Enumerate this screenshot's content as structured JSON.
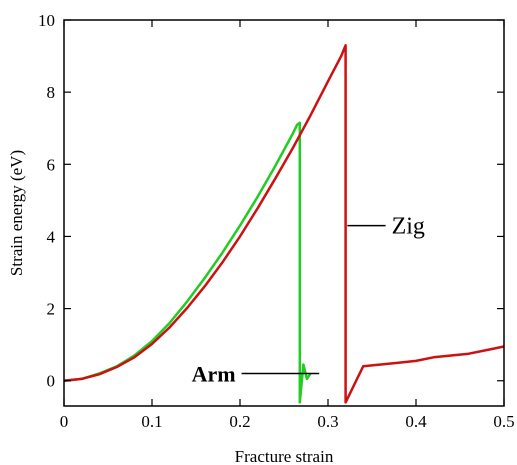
{
  "chart_data": {
    "type": "line",
    "title": "",
    "xlabel": "Fracture strain",
    "ylabel": "Strain energy (eV)",
    "xlim": [
      0,
      0.5
    ],
    "ylim": [
      -0.7,
      10
    ],
    "x_ticks": [
      "0",
      "0.1",
      "0.2",
      "0.3",
      "0.4",
      "0.5"
    ],
    "y_ticks": [
      "0",
      "2",
      "4",
      "6",
      "8",
      "10"
    ],
    "x_tick_values": [
      0,
      0.1,
      0.2,
      0.3,
      0.4,
      0.5
    ],
    "y_tick_values": [
      0,
      2,
      4,
      6,
      8,
      10
    ],
    "grid": false,
    "legend": "none",
    "series": [
      {
        "name": "Arm",
        "color": "#22cc22",
        "x": [
          0,
          0.02,
          0.04,
          0.06,
          0.08,
          0.1,
          0.12,
          0.14,
          0.16,
          0.18,
          0.2,
          0.22,
          0.24,
          0.26,
          0.265,
          0.268,
          0.268,
          0.272,
          0.276,
          0.28
        ],
        "y": [
          0,
          0.05,
          0.2,
          0.4,
          0.7,
          1.1,
          1.6,
          2.2,
          2.85,
          3.55,
          4.3,
          5.1,
          5.95,
          6.85,
          7.1,
          7.15,
          -0.6,
          0.45,
          0.05,
          0.2
        ]
      },
      {
        "name": "Zig",
        "color": "#cc1111",
        "x": [
          0,
          0.02,
          0.04,
          0.06,
          0.08,
          0.1,
          0.12,
          0.14,
          0.16,
          0.18,
          0.2,
          0.22,
          0.24,
          0.26,
          0.28,
          0.3,
          0.315,
          0.32,
          0.32,
          0.34,
          0.36,
          0.38,
          0.4,
          0.42,
          0.44,
          0.46,
          0.48,
          0.5
        ],
        "y": [
          0,
          0.05,
          0.18,
          0.38,
          0.65,
          1.02,
          1.48,
          2.02,
          2.62,
          3.28,
          4.0,
          4.78,
          5.6,
          6.45,
          7.35,
          8.3,
          9.0,
          9.3,
          -0.6,
          0.4,
          0.45,
          0.5,
          0.55,
          0.65,
          0.7,
          0.75,
          0.85,
          0.95
        ]
      }
    ],
    "annotations": [
      {
        "text": "Arm",
        "x": 0.17,
        "y": 0.2,
        "pointer_to": [
          0.29,
          0.2
        ],
        "bold": true
      },
      {
        "text": "Zig",
        "x": 0.37,
        "y": 4.3,
        "pointer_to": [
          0.322,
          4.3
        ],
        "bold": false
      }
    ]
  }
}
